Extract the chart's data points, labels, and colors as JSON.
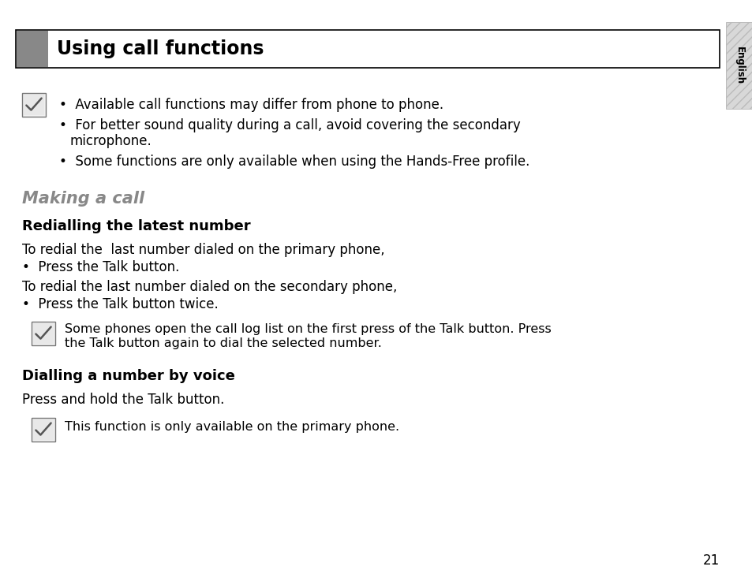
{
  "bg_color": "#ffffff",
  "header_bar_color": "#888888",
  "header_border_color": "#000000",
  "header_text": "Using call functions",
  "header_text_color": "#000000",
  "section_title": "Making a call",
  "section_title_color": "#888888",
  "english_tab_bg": "#cccccc",
  "english_tab_text": "English",
  "english_tab_text_color": "#000000",
  "page_number": "21",
  "page_number_color": "#000000",
  "bullet_note_line1": "Available call functions may differ from phone to phone.",
  "bullet_note_line2a": "For better sound quality during a call, avoid covering the secondary",
  "bullet_note_line2b": "microphone.",
  "bullet_note_line3": "Some functions are only available when using the Hands-Free profile.",
  "subsection1_title": "Redialling the latest number",
  "body_line1": "To redial the  last number dialed on the primary phone,",
  "body_line2": "•  Press the Talk button.",
  "body_line3": "To redial the last number dialed on the secondary phone,",
  "body_line4": "•  Press the Talk button twice.",
  "note1_line1": "Some phones open the call log list on the first press of the Talk button. Press",
  "note1_line2": "the Talk button again to dial the selected number.",
  "subsection2_title": "Dialling a number by voice",
  "subsection2_body": "Press and hold the Talk button.",
  "note2": "This function is only available on the primary phone.",
  "body_font_size": 12,
  "header_font_size": 17,
  "section_title_font_size": 15,
  "subsection_font_size": 13
}
